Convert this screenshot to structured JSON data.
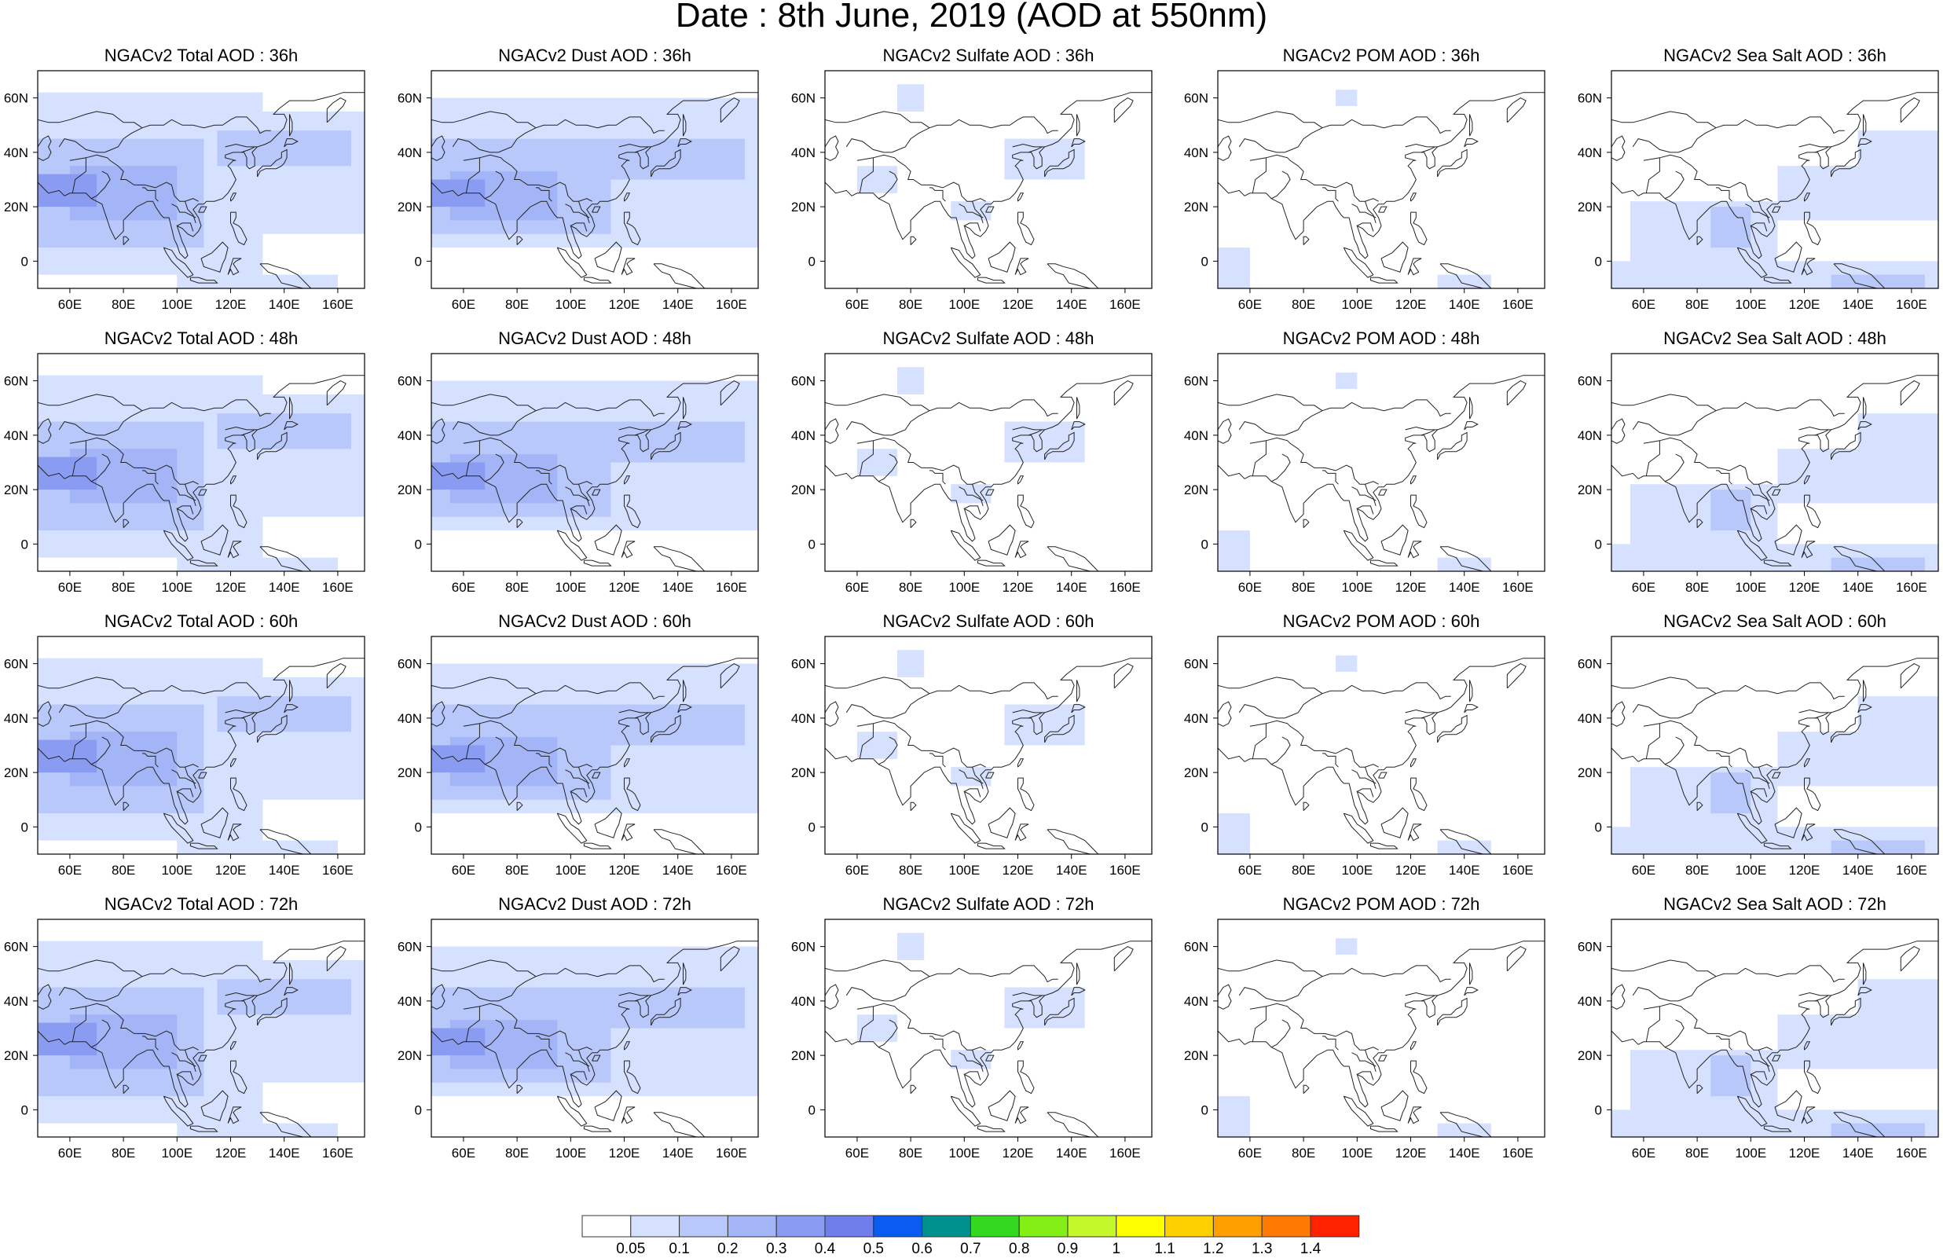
{
  "figure": {
    "title": "Date : 8th June, 2019 (AOD at 550nm)"
  },
  "map": {
    "type": "gridded-field-maps",
    "projection": "cylindrical-equidistant",
    "lon_range": [
      48,
      170
    ],
    "lat_range": [
      -10,
      70
    ],
    "lon_ticks": [
      "60E",
      "80E",
      "100E",
      "120E",
      "140E",
      "160E"
    ],
    "lat_ticks": [
      "0",
      "20N",
      "40N",
      "60N"
    ],
    "base_map": "coastlines"
  },
  "panels": [
    {
      "title": "NGACv2 Total AOD : 36h",
      "species": "total",
      "lead": "36h"
    },
    {
      "title": "NGACv2 Dust AOD : 36h",
      "species": "dust",
      "lead": "36h"
    },
    {
      "title": "NGACv2 Sulfate AOD : 36h",
      "species": "sulfate",
      "lead": "36h"
    },
    {
      "title": "NGACv2 POM AOD : 36h",
      "species": "pom",
      "lead": "36h"
    },
    {
      "title": "NGACv2 Sea Salt AOD : 36h",
      "species": "seasalt",
      "lead": "36h"
    },
    {
      "title": "NGACv2 Total AOD : 48h",
      "species": "total",
      "lead": "48h"
    },
    {
      "title": "NGACv2 Dust AOD : 48h",
      "species": "dust",
      "lead": "48h"
    },
    {
      "title": "NGACv2 Sulfate AOD : 48h",
      "species": "sulfate",
      "lead": "48h"
    },
    {
      "title": "NGACv2 POM AOD : 48h",
      "species": "pom",
      "lead": "48h"
    },
    {
      "title": "NGACv2 Sea Salt AOD : 48h",
      "species": "seasalt",
      "lead": "48h"
    },
    {
      "title": "NGACv2 Total AOD : 60h",
      "species": "total",
      "lead": "60h"
    },
    {
      "title": "NGACv2 Dust AOD : 60h",
      "species": "dust",
      "lead": "60h"
    },
    {
      "title": "NGACv2 Sulfate AOD : 60h",
      "species": "sulfate",
      "lead": "60h"
    },
    {
      "title": "NGACv2 POM AOD : 60h",
      "species": "pom",
      "lead": "60h"
    },
    {
      "title": "NGACv2 Sea Salt AOD : 60h",
      "species": "seasalt",
      "lead": "60h"
    },
    {
      "title": "NGACv2 Total AOD : 72h",
      "species": "total",
      "lead": "72h"
    },
    {
      "title": "NGACv2 Dust AOD : 72h",
      "species": "dust",
      "lead": "72h"
    },
    {
      "title": "NGACv2 Sulfate AOD : 72h",
      "species": "sulfate",
      "lead": "72h"
    },
    {
      "title": "NGACv2 POM AOD : 72h",
      "species": "pom",
      "lead": "72h"
    },
    {
      "title": "NGACv2 Sea Salt  AOD : 72h",
      "species": "seasalt",
      "lead": "72h"
    }
  ],
  "colorbar": {
    "labels": [
      "0.05",
      "0.1",
      "0.2",
      "0.3",
      "0.4",
      "0.5",
      "0.6",
      "0.7",
      "0.8",
      "0.9",
      "1",
      "1.1",
      "1.2",
      "1.3",
      "1.4"
    ],
    "colors": [
      "#ffffff",
      "#d6e0ff",
      "#b8c8fb",
      "#a3b5f7",
      "#8a9cf2",
      "#6f7eea",
      "#0a5cf0",
      "#00908e",
      "#33d91f",
      "#84ef16",
      "#c4f82b",
      "#ffff00",
      "#ffd000",
      "#ffa000",
      "#ff7a00",
      "#ff2200"
    ]
  }
}
